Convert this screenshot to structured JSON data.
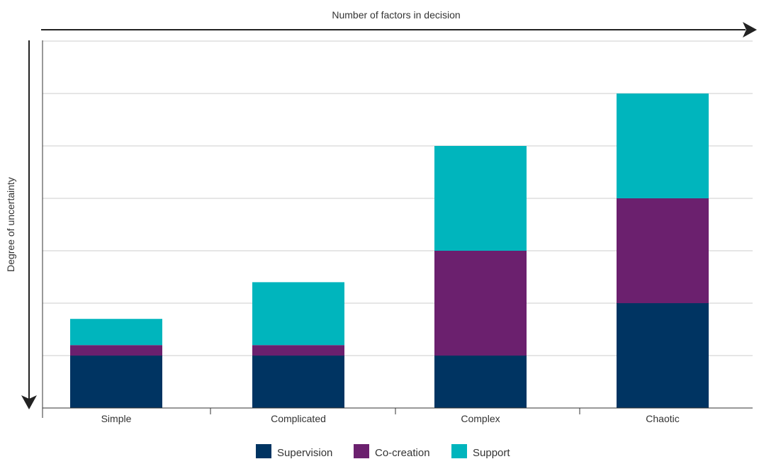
{
  "chart_data": {
    "type": "bar",
    "stacked": true,
    "title": "",
    "xlabel": "Number of factors in decision",
    "ylabel": "Degree of uncertainty",
    "categories": [
      "Simple",
      "Complicated",
      "Complex",
      "Chaotic"
    ],
    "series": [
      {
        "name": "Supervision",
        "color": "#003462",
        "values": [
          1.0,
          1.0,
          1.0,
          2.0
        ]
      },
      {
        "name": "Co-creation",
        "color": "#6b206e",
        "values": [
          0.2,
          0.2,
          2.0,
          2.0
        ]
      },
      {
        "name": "Support",
        "color": "#00b5bd",
        "values": [
          0.5,
          1.2,
          2.0,
          2.0
        ]
      }
    ],
    "ylim": [
      0,
      7
    ],
    "grid": true,
    "y_tick_labels_shown": false,
    "legend": "bottom-center"
  }
}
